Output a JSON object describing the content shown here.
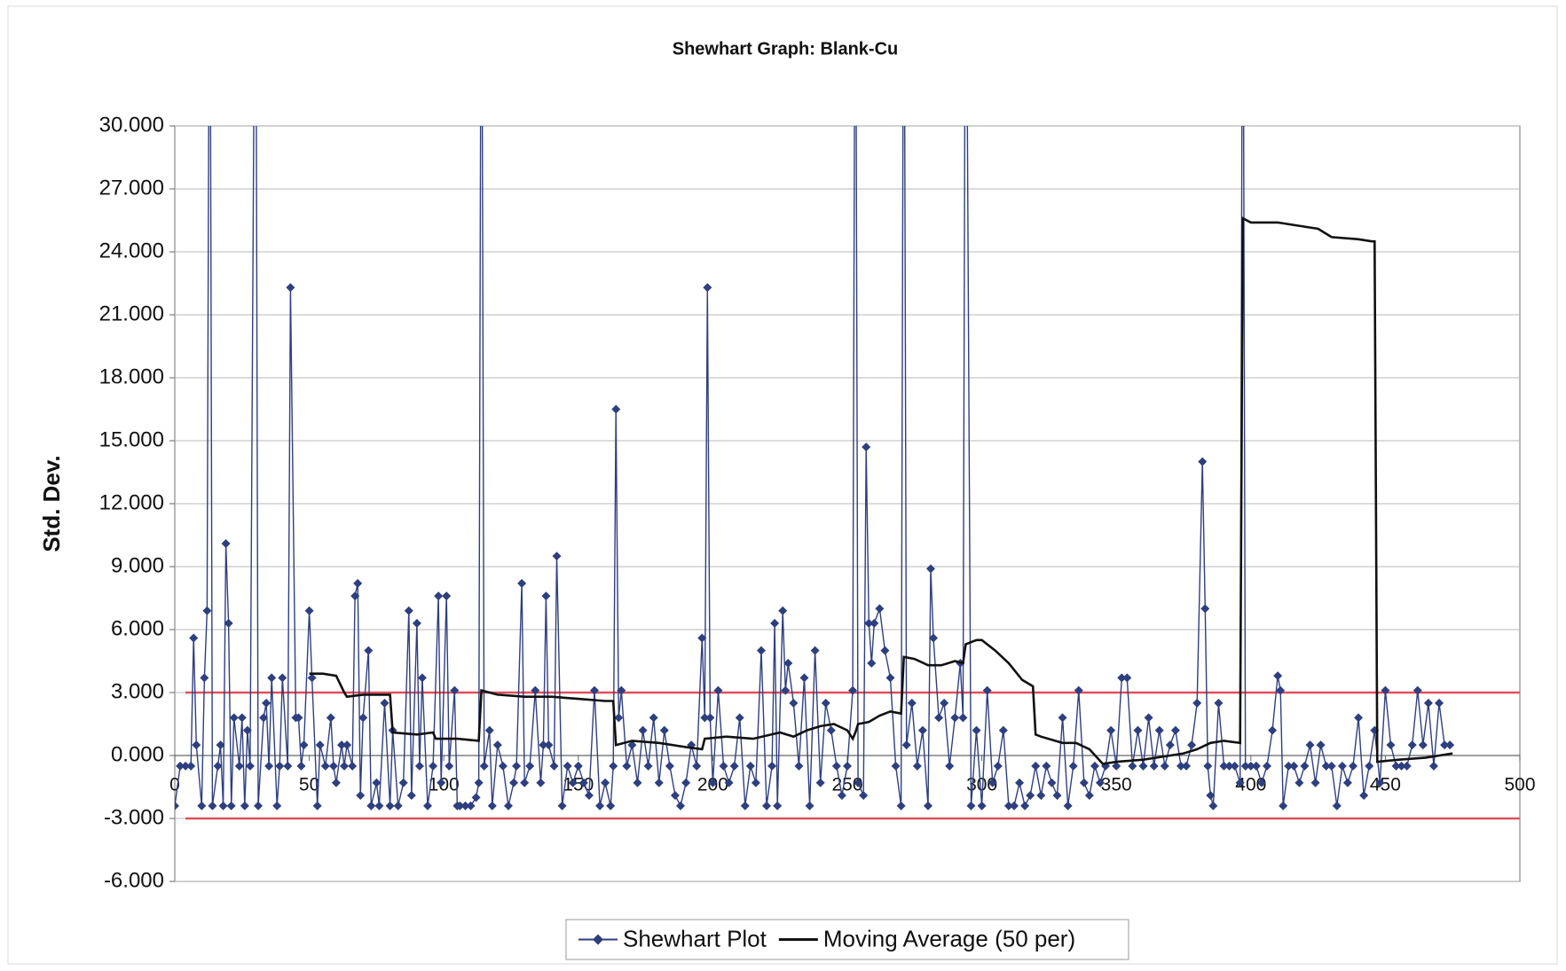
{
  "chart_data": {
    "type": "line",
    "title": "Shewhart Graph: Blank-Cu",
    "ylabel": "Std. Dev.",
    "xlim": [
      0,
      500
    ],
    "xticks": [
      0,
      50,
      100,
      150,
      200,
      250,
      300,
      350,
      400,
      450,
      500
    ],
    "ylim": [
      -6,
      30
    ],
    "yticks": [
      {
        "value": -6,
        "label": "-6.000"
      },
      {
        "value": -3,
        "label": "-3.000"
      },
      {
        "value": 0,
        "label": "0.000"
      },
      {
        "value": 3,
        "label": "3.000"
      },
      {
        "value": 6,
        "label": "6.000"
      },
      {
        "value": 9,
        "label": "9.000"
      },
      {
        "value": 12,
        "label": "12.000"
      },
      {
        "value": 15,
        "label": "15.000"
      },
      {
        "value": 18,
        "label": "18.000"
      },
      {
        "value": 21,
        "label": "21.000"
      },
      {
        "value": 24,
        "label": "24.000"
      },
      {
        "value": 27,
        "label": "27.000"
      },
      {
        "value": 30,
        "label": "30.000"
      }
    ],
    "grid": true,
    "legend": "bottom",
    "reference_lines": [
      3,
      -3
    ],
    "reference_color": "#e0505e",
    "series": [
      {
        "name": "Shewhart Plot",
        "color": "#2e3f7f",
        "marker": "diamond",
        "x": [
          0,
          2,
          4,
          6,
          7,
          8,
          10,
          11,
          12,
          13,
          14,
          16,
          17,
          18,
          19,
          20,
          21,
          22,
          24,
          25,
          26,
          27,
          28,
          30,
          31,
          33,
          34,
          35,
          36,
          38,
          39,
          40,
          42,
          43,
          45,
          46,
          47,
          48,
          50,
          51,
          53,
          54,
          56,
          58,
          59,
          60,
          62,
          63,
          64,
          66,
          67,
          68,
          69,
          70,
          72,
          73,
          75,
          76,
          78,
          80,
          81,
          83,
          85,
          87,
          88,
          90,
          91,
          92,
          94,
          96,
          98,
          99,
          101,
          102,
          104,
          105,
          106,
          108,
          110,
          112,
          113,
          114,
          115,
          117,
          118,
          120,
          122,
          124,
          126,
          127,
          129,
          130,
          132,
          134,
          136,
          137,
          138,
          139,
          141,
          142,
          144,
          146,
          148,
          150,
          152,
          154,
          156,
          158,
          160,
          162,
          163,
          164,
          165,
          166,
          168,
          170,
          172,
          174,
          176,
          178,
          180,
          182,
          184,
          186,
          188,
          190,
          192,
          194,
          196,
          197,
          198,
          199,
          200,
          202,
          204,
          206,
          208,
          210,
          212,
          214,
          216,
          218,
          220,
          222,
          223,
          224,
          226,
          227,
          228,
          230,
          232,
          234,
          236,
          238,
          240,
          242,
          244,
          246,
          248,
          250,
          252,
          253,
          254,
          256,
          257,
          258,
          259,
          260,
          262,
          264,
          266,
          268,
          270,
          271,
          272,
          274,
          276,
          278,
          280,
          281,
          282,
          284,
          286,
          288,
          290,
          292,
          293,
          294,
          296,
          298,
          300,
          302,
          304,
          306,
          308,
          310,
          312,
          314,
          316,
          318,
          320,
          322,
          324,
          326,
          328,
          330,
          332,
          334,
          336,
          338,
          340,
          342,
          344,
          346,
          348,
          350,
          352,
          354,
          356,
          358,
          360,
          362,
          364,
          366,
          368,
          370,
          372,
          374,
          376,
          378,
          380,
          382,
          383,
          384,
          385,
          386,
          388,
          390,
          392,
          394,
          396,
          397,
          398,
          400,
          402,
          404,
          406,
          408,
          410,
          411,
          412,
          414,
          416,
          418,
          420,
          422,
          424,
          426,
          428,
          430,
          432,
          434,
          436,
          438,
          440,
          442,
          444,
          446,
          448,
          450,
          452,
          454,
          456,
          458,
          460,
          462,
          464,
          466,
          468,
          470,
          472,
          474
        ],
        "values": [
          -2.4,
          -0.5,
          -0.5,
          -0.5,
          5.6,
          0.5,
          -2.4,
          3.7,
          6.9,
          45,
          -2.4,
          -0.5,
          0.5,
          -2.4,
          10.1,
          6.3,
          -2.4,
          1.8,
          -0.5,
          1.8,
          -2.4,
          1.2,
          -0.5,
          45,
          -2.4,
          1.8,
          2.5,
          -0.5,
          3.7,
          -2.4,
          -0.5,
          3.7,
          -0.5,
          22.3,
          1.8,
          1.8,
          -0.5,
          0.5,
          6.9,
          3.7,
          -2.4,
          0.5,
          -0.5,
          1.8,
          -0.5,
          -1.3,
          0.5,
          -0.5,
          0.5,
          -0.5,
          7.6,
          8.2,
          -1.9,
          1.8,
          5.0,
          -2.4,
          -1.3,
          -2.4,
          2.5,
          -2.4,
          1.2,
          -2.4,
          -1.3,
          6.9,
          -1.9,
          6.3,
          -0.5,
          3.7,
          -2.4,
          -0.5,
          7.6,
          -1.3,
          7.6,
          -0.5,
          3.1,
          -2.4,
          -2.4,
          -2.4,
          -2.4,
          -2.0,
          -1.3,
          45,
          -0.5,
          1.2,
          -2.4,
          0.5,
          -0.5,
          -2.4,
          -1.3,
          -0.5,
          8.2,
          -1.3,
          -0.5,
          3.1,
          -1.3,
          0.5,
          7.6,
          0.5,
          -0.5,
          9.5,
          -2.4,
          -0.5,
          -1.3,
          -0.5,
          -1.3,
          -1.9,
          3.1,
          -2.4,
          -1.3,
          -2.4,
          -0.5,
          16.5,
          1.8,
          3.1,
          -0.5,
          0.5,
          -1.3,
          1.2,
          -0.5,
          1.8,
          -1.3,
          1.2,
          -0.5,
          -1.9,
          -2.4,
          -1.3,
          0.5,
          -0.5,
          5.6,
          1.8,
          22.3,
          1.8,
          -1.3,
          3.1,
          -0.5,
          -1.3,
          -0.5,
          1.8,
          -2.4,
          -0.5,
          -1.3,
          5.0,
          -2.4,
          -0.5,
          6.3,
          -2.4,
          6.9,
          3.1,
          4.4,
          2.5,
          -0.5,
          3.7,
          -2.4,
          5.0,
          -1.3,
          2.5,
          1.2,
          -0.5,
          -1.9,
          -0.5,
          3.1,
          45,
          -1.3,
          -1.9,
          14.7,
          6.3,
          4.4,
          6.3,
          7.0,
          5.0,
          3.7,
          -0.5,
          -2.4,
          45,
          0.5,
          2.5,
          -0.5,
          1.2,
          -2.4,
          8.9,
          5.6,
          1.8,
          2.5,
          -0.5,
          1.8,
          4.4,
          1.8,
          45,
          -2.4,
          1.2,
          -2.4,
          3.1,
          -1.3,
          -0.5,
          1.2,
          -2.4,
          -2.4,
          -1.3,
          -2.4,
          -1.9,
          -0.5,
          -1.9,
          -0.5,
          -1.3,
          -1.9,
          1.8,
          -2.4,
          -0.5,
          3.1,
          -1.3,
          -1.9,
          -0.5,
          -1.3,
          -0.5,
          1.2,
          -0.5,
          3.7,
          3.7,
          -0.5,
          1.2,
          -0.5,
          1.8,
          -0.5,
          1.2,
          -0.5,
          0.5,
          1.2,
          -0.5,
          -0.5,
          0.5,
          2.5,
          14.0,
          7.0,
          -0.5,
          -1.9,
          -2.4,
          2.5,
          -0.5,
          -0.5,
          -0.5,
          -1.3,
          45,
          -0.5,
          -0.5,
          -0.5,
          -1.3,
          -0.5,
          1.2,
          3.8,
          3.1,
          -2.4,
          -0.5,
          -0.5,
          -1.3,
          -0.5,
          0.5,
          -1.3,
          0.5,
          -0.5,
          -0.5,
          -2.4,
          -0.5,
          -1.3,
          -0.5,
          1.8,
          -1.9,
          -0.5,
          1.2,
          -1.3,
          3.1,
          0.5,
          -0.5,
          -0.5,
          -0.5,
          0.5,
          3.1,
          0.5,
          2.5,
          -0.5,
          2.5,
          0.5,
          0.5
        ]
      },
      {
        "name": "Moving Average (50 per)",
        "color": "#111111",
        "marker": "none",
        "x": [
          50,
          55,
          60,
          63,
          64,
          70,
          78,
          80,
          81,
          90,
          96,
          97,
          105,
          113,
          114,
          120,
          130,
          140,
          150,
          160,
          162,
          163,
          164,
          170,
          180,
          190,
          196,
          197,
          205,
          215,
          225,
          230,
          235,
          240,
          245,
          250,
          252,
          253,
          254,
          258,
          262,
          266,
          270,
          271,
          275,
          280,
          285,
          290,
          293,
          294,
          298,
          300,
          305,
          310,
          315,
          319,
          320,
          322,
          330,
          335,
          340,
          345,
          350,
          360,
          370,
          375,
          380,
          385,
          390,
          396,
          397,
          400,
          410,
          420,
          425,
          430,
          440,
          445,
          446,
          447,
          455,
          465,
          475
        ],
        "values": [
          3.9,
          3.9,
          3.8,
          3.0,
          2.8,
          2.9,
          2.9,
          2.9,
          1.1,
          1.0,
          1.1,
          0.8,
          0.8,
          0.7,
          3.1,
          2.9,
          2.8,
          2.8,
          2.7,
          2.6,
          2.6,
          2.6,
          0.5,
          0.7,
          0.6,
          0.4,
          0.3,
          0.8,
          0.9,
          0.8,
          1.1,
          0.9,
          1.2,
          1.4,
          1.5,
          1.2,
          0.8,
          1.1,
          1.5,
          1.6,
          1.9,
          2.1,
          2.0,
          4.7,
          4.6,
          4.3,
          4.3,
          4.5,
          4.4,
          5.3,
          5.5,
          5.5,
          5.0,
          4.4,
          3.6,
          3.3,
          1.0,
          0.9,
          0.6,
          0.6,
          0.3,
          -0.4,
          -0.3,
          -0.2,
          0.0,
          0.1,
          0.3,
          0.6,
          0.7,
          0.6,
          25.6,
          25.4,
          25.4,
          25.2,
          25.1,
          24.7,
          24.6,
          24.5,
          24.5,
          -0.3,
          -0.2,
          -0.1,
          0.1
        ]
      }
    ]
  }
}
